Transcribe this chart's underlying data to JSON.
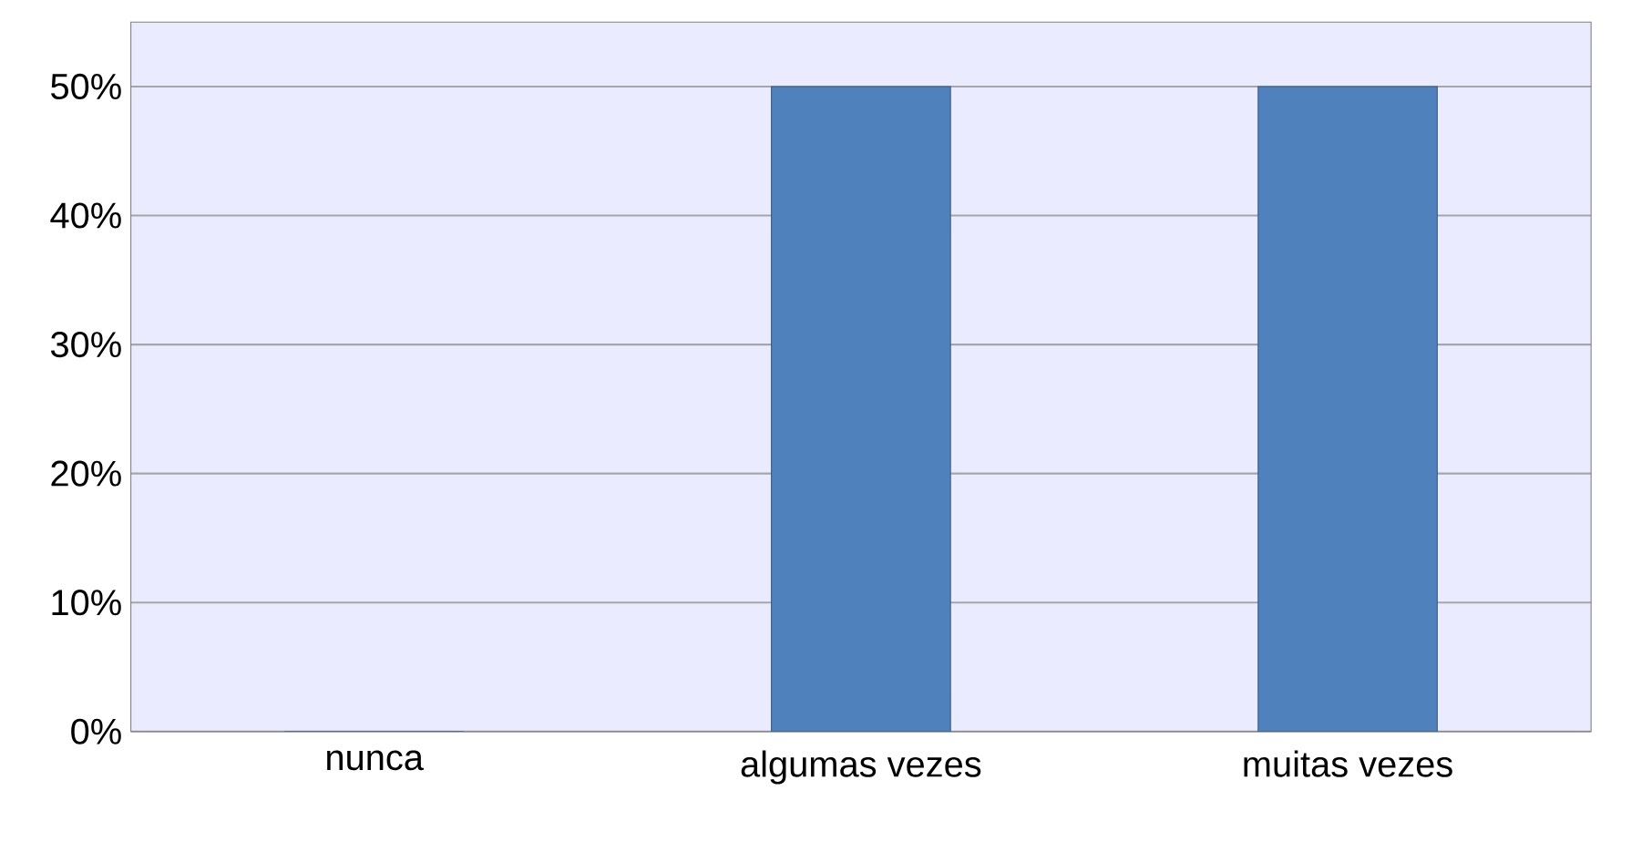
{
  "chart_data": {
    "type": "bar",
    "categories": [
      "nunca",
      "algumas vezes",
      "muitas vezes"
    ],
    "values": [
      0,
      50,
      50
    ],
    "color": "#4f81bd",
    "ylim": [
      0,
      55
    ],
    "yticks": [
      {
        "value": 0,
        "label": "0%"
      },
      {
        "value": 10,
        "label": "10%"
      },
      {
        "value": 20,
        "label": "20%"
      },
      {
        "value": 30,
        "label": "30%"
      },
      {
        "value": 40,
        "label": "40%"
      },
      {
        "value": 50,
        "label": "50%"
      }
    ],
    "grid": "y"
  }
}
